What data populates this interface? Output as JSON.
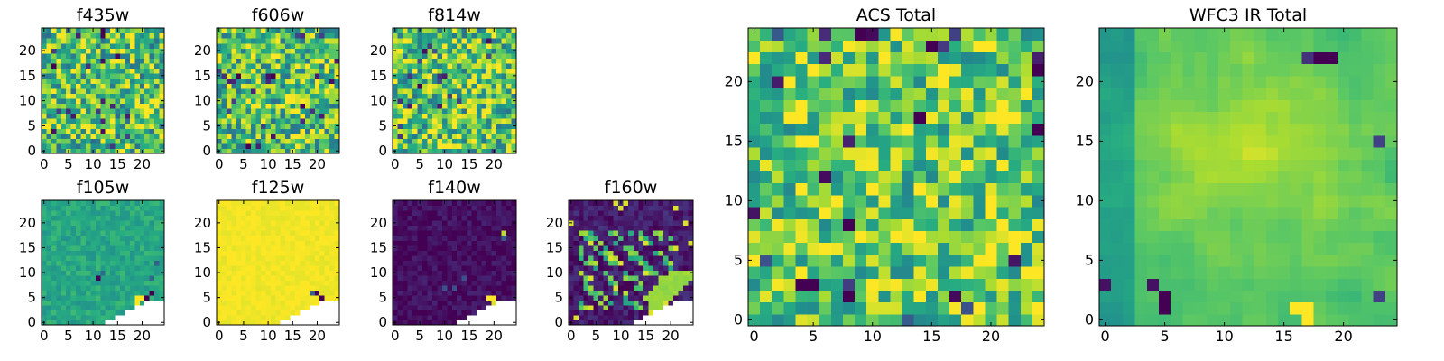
{
  "figure": {
    "colormap": "viridis",
    "colors": {
      "low": "#440154",
      "mid_low": "#31688e",
      "mid": "#35b779",
      "high": "#fde725",
      "masked": "#ffffff"
    },
    "grid": false
  },
  "chart_data": [
    {
      "type": "heatmap",
      "title": "f435w",
      "grid_size": [
        25,
        25
      ],
      "xlim": [
        0,
        24
      ],
      "ylim": [
        0,
        24
      ],
      "xticks": [
        "0",
        "5",
        "10",
        "15",
        "20"
      ],
      "yticks": [
        "0",
        "5",
        "10",
        "15",
        "20"
      ],
      "pattern": "noise",
      "value_range": [
        0,
        1
      ],
      "mean": 0.7,
      "spread": 0.2,
      "seed": 11
    },
    {
      "type": "heatmap",
      "title": "f606w",
      "grid_size": [
        25,
        25
      ],
      "xlim": [
        0,
        24
      ],
      "ylim": [
        0,
        24
      ],
      "xticks": [
        "0",
        "5",
        "10",
        "15",
        "20"
      ],
      "yticks": [
        "0",
        "5",
        "10",
        "15",
        "20"
      ],
      "pattern": "noise",
      "value_range": [
        0,
        1
      ],
      "mean": 0.72,
      "spread": 0.2,
      "seed": 23
    },
    {
      "type": "heatmap",
      "title": "f814w",
      "grid_size": [
        25,
        25
      ],
      "xlim": [
        0,
        24
      ],
      "ylim": [
        0,
        24
      ],
      "xticks": [
        "0",
        "5",
        "10",
        "15",
        "20"
      ],
      "yticks": [
        "0",
        "5",
        "10",
        "15",
        "20"
      ],
      "pattern": "noise",
      "value_range": [
        0,
        1
      ],
      "mean": 0.72,
      "spread": 0.2,
      "seed": 37
    },
    {
      "type": "heatmap",
      "title": "f105w",
      "grid_size": [
        25,
        25
      ],
      "xlim": [
        0,
        24
      ],
      "ylim": [
        0,
        24
      ],
      "xticks": [
        "0",
        "5",
        "10",
        "15",
        "20"
      ],
      "yticks": [
        "0",
        "5",
        "10",
        "15",
        "20"
      ],
      "pattern": "uniform",
      "value_range": [
        0,
        1
      ],
      "mean": 0.6,
      "spread": 0.05,
      "seed": 41,
      "masked_corner": "bottom-right",
      "features": [
        {
          "x": 21,
          "y": 5,
          "v": 0.0
        },
        {
          "x": 22,
          "y": 6,
          "v": 0.0
        },
        {
          "x": 19,
          "y": 5,
          "v": 1.0
        },
        {
          "x": 20,
          "y": 5,
          "v": 1.0
        },
        {
          "x": 19,
          "y": 4,
          "v": 1.0
        },
        {
          "x": 11,
          "y": 9,
          "v": 0.0
        },
        {
          "x": 12,
          "y": 10,
          "v": 0.35
        },
        {
          "x": 23,
          "y": 12,
          "v": 0.3
        },
        {
          "x": 22,
          "y": 9,
          "v": 0.35
        }
      ]
    },
    {
      "type": "heatmap",
      "title": "f125w",
      "grid_size": [
        25,
        25
      ],
      "xlim": [
        0,
        24
      ],
      "ylim": [
        0,
        24
      ],
      "xticks": [
        "0",
        "5",
        "10",
        "15",
        "20"
      ],
      "yticks": [
        "0",
        "5",
        "10",
        "15",
        "20"
      ],
      "pattern": "uniform",
      "value_range": [
        0,
        1
      ],
      "mean": 0.985,
      "spread": 0.015,
      "seed": 53,
      "masked_corner": "bottom-right",
      "features": [
        {
          "x": 20,
          "y": 6,
          "v": 0.0
        },
        {
          "x": 21,
          "y": 5,
          "v": 0.0
        },
        {
          "x": 19,
          "y": 6,
          "v": 0.3
        }
      ]
    },
    {
      "type": "heatmap",
      "title": "f140w",
      "grid_size": [
        25,
        25
      ],
      "xlim": [
        0,
        24
      ],
      "ylim": [
        0,
        24
      ],
      "xticks": [
        "0",
        "5",
        "10",
        "15",
        "20"
      ],
      "yticks": [
        "0",
        "5",
        "10",
        "15",
        "20"
      ],
      "pattern": "uniform",
      "value_range": [
        0,
        1
      ],
      "mean": 0.04,
      "spread": 0.04,
      "seed": 67,
      "masked_corner": "bottom-right",
      "features": [
        {
          "x": 19,
          "y": 5,
          "v": 1.0
        },
        {
          "x": 20,
          "y": 5,
          "v": 1.0
        },
        {
          "x": 20,
          "y": 4,
          "v": 0.95
        },
        {
          "x": 22,
          "y": 18,
          "v": 0.9
        },
        {
          "x": 22,
          "y": 17,
          "v": 0.3
        },
        {
          "x": 10,
          "y": 7,
          "v": 0.25
        },
        {
          "x": 12,
          "y": 7,
          "v": 0.25
        },
        {
          "x": 14,
          "y": 9,
          "v": 0.25
        }
      ]
    },
    {
      "type": "heatmap",
      "title": "f160w",
      "grid_size": [
        25,
        25
      ],
      "xlim": [
        0,
        24
      ],
      "ylim": [
        0,
        24
      ],
      "xticks": [
        "0",
        "5",
        "10",
        "15",
        "20"
      ],
      "yticks": [
        "0",
        "5",
        "10",
        "15",
        "20"
      ],
      "pattern": "patchy",
      "value_range": [
        0,
        1
      ],
      "mean": 0.08,
      "spread": 0.05,
      "seed": 79,
      "masked_corner": "bottom-right"
    },
    {
      "type": "heatmap",
      "title": "ACS Total",
      "grid_size": [
        25,
        25
      ],
      "xlim": [
        0,
        24
      ],
      "ylim": [
        0,
        24
      ],
      "xticks": [
        "0",
        "5",
        "10",
        "15",
        "20"
      ],
      "yticks": [
        "0",
        "5",
        "10",
        "15",
        "20"
      ],
      "pattern": "noise",
      "value_range": [
        0,
        1
      ],
      "mean": 0.75,
      "spread": 0.17,
      "seed": 97,
      "features": [
        {
          "x": 9,
          "y": 24,
          "v": 0.0
        },
        {
          "x": 15,
          "y": 23,
          "v": 0.0
        },
        {
          "x": 4,
          "y": 3,
          "v": 0.0
        },
        {
          "x": 5,
          "y": 3,
          "v": 0.0
        },
        {
          "x": 8,
          "y": 2,
          "v": 0.0
        },
        {
          "x": 8,
          "y": 8,
          "v": 0.0
        },
        {
          "x": 24,
          "y": 21,
          "v": 0.0
        },
        {
          "x": 24,
          "y": 16,
          "v": 0.0
        },
        {
          "x": 14,
          "y": 17,
          "v": 0.0
        }
      ]
    },
    {
      "type": "heatmap",
      "title": "WFC3 IR Total",
      "grid_size": [
        25,
        25
      ],
      "xlim": [
        0,
        24
      ],
      "ylim": [
        0,
        24
      ],
      "xticks": [
        "0",
        "5",
        "10",
        "15",
        "20"
      ],
      "yticks": [
        "0",
        "5",
        "10",
        "15",
        "20"
      ],
      "pattern": "smooth",
      "value_range": [
        0,
        1
      ],
      "mean": 0.72,
      "spread": 0.08,
      "seed": 109,
      "features": [
        {
          "x": 18,
          "y": 22,
          "v": 0.0
        },
        {
          "x": 19,
          "y": 22,
          "v": 0.0
        },
        {
          "x": 17,
          "y": 22,
          "v": 0.15
        },
        {
          "x": 5,
          "y": 2,
          "v": 0.0
        },
        {
          "x": 5,
          "y": 1,
          "v": 0.0
        },
        {
          "x": 4,
          "y": 3,
          "v": 0.05
        },
        {
          "x": 0,
          "y": 3,
          "v": 0.05
        },
        {
          "x": 23,
          "y": 2,
          "v": 0.2
        },
        {
          "x": 23,
          "y": 15,
          "v": 0.2
        },
        {
          "x": 16,
          "y": 1,
          "v": 1.0
        },
        {
          "x": 17,
          "y": 1,
          "v": 1.0
        },
        {
          "x": 17,
          "y": 0,
          "v": 1.0
        }
      ]
    }
  ]
}
